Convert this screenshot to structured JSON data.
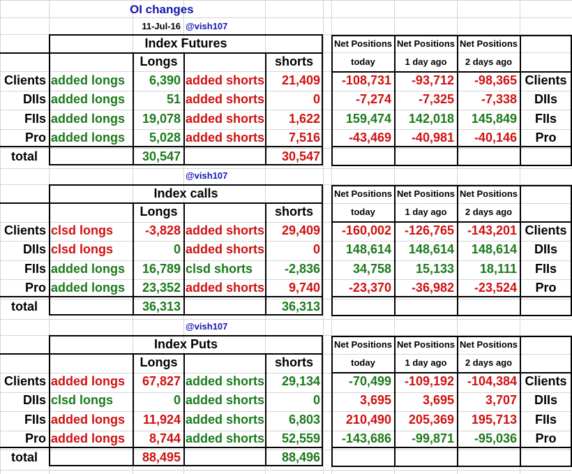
{
  "title": "OI changes",
  "date": "11-Jul-16",
  "handle": "@vish107",
  "columns": {
    "longs": "Longs",
    "shorts": "shorts",
    "net_positions": "Net Positions",
    "today": "today",
    "day1": "1 day ago",
    "day2": "2 days ago"
  },
  "total_label": "total",
  "sections": [
    {
      "heading": "Index Futures",
      "rows": [
        {
          "name": "Clients",
          "long_label": "added longs",
          "long_val": "6,390",
          "short_label": "added shorts",
          "short_val": "21,409",
          "net_today": "-108,731",
          "net_1d": "-93,712",
          "net_2d": "-98,365"
        },
        {
          "name": "DIIs",
          "long_label": "added longs",
          "long_val": "51",
          "short_label": "added shorts",
          "short_val": "0",
          "net_today": "-7,274",
          "net_1d": "-7,325",
          "net_2d": "-7,338"
        },
        {
          "name": "FIIs",
          "long_label": "added longs",
          "long_val": "19,078",
          "short_label": "added shorts",
          "short_val": "1,622",
          "net_today": "159,474",
          "net_1d": "142,018",
          "net_2d": "145,849"
        },
        {
          "name": "Pro",
          "long_label": "added longs",
          "long_val": "5,028",
          "short_label": "added shorts",
          "short_val": "7,516",
          "net_today": "-43,469",
          "net_1d": "-40,981",
          "net_2d": "-40,146"
        }
      ],
      "total_longs": "30,547",
      "total_shorts": "30,547"
    },
    {
      "heading": "Index calls",
      "rows": [
        {
          "name": "Clients",
          "long_label": "clsd longs",
          "long_val": "-3,828",
          "short_label": "added shorts",
          "short_val": "29,409",
          "net_today": "-160,002",
          "net_1d": "-126,765",
          "net_2d": "-143,201"
        },
        {
          "name": "DIIs",
          "long_label": "clsd longs",
          "long_val": "0",
          "short_label": "added shorts",
          "short_val": "0",
          "net_today": "148,614",
          "net_1d": "148,614",
          "net_2d": "148,614"
        },
        {
          "name": "FIIs",
          "long_label": "added longs",
          "long_val": "16,789",
          "short_label": "clsd shorts",
          "short_val": "-2,836",
          "net_today": "34,758",
          "net_1d": "15,133",
          "net_2d": "18,111"
        },
        {
          "name": "Pro",
          "long_label": "added longs",
          "long_val": "23,352",
          "short_label": "added shorts",
          "short_val": "9,740",
          "net_today": "-23,370",
          "net_1d": "-36,982",
          "net_2d": "-23,524"
        }
      ],
      "total_longs": "36,313",
      "total_shorts": "36,313"
    },
    {
      "heading": "Index Puts",
      "rows": [
        {
          "name": "Clients",
          "long_label": "added longs",
          "long_val": "67,827",
          "short_label": "added shorts",
          "short_val": "29,134",
          "net_today": "-70,499",
          "net_1d": "-109,192",
          "net_2d": "-104,384"
        },
        {
          "name": "DIIs",
          "long_label": "clsd longs",
          "long_val": "0",
          "short_label": "added shorts",
          "short_val": "0",
          "net_today": "3,695",
          "net_1d": "3,695",
          "net_2d": "3,707"
        },
        {
          "name": "FIIs",
          "long_label": "added longs",
          "long_val": "11,924",
          "short_label": "added shorts",
          "short_val": "6,803",
          "net_today": "210,490",
          "net_1d": "205,369",
          "net_2d": "195,713"
        },
        {
          "name": "Pro",
          "long_label": "added longs",
          "long_val": "8,744",
          "short_label": "added shorts",
          "short_val": "52,559",
          "net_today": "-143,686",
          "net_1d": "-99,871",
          "net_2d": "-95,036"
        }
      ],
      "total_longs": "88,495",
      "total_shorts": "88,496"
    }
  ],
  "colors": {
    "red": "#d01010",
    "green": "#1a7a1a",
    "blue": "#1414b4",
    "black": "#000000"
  },
  "cell_colors": [
    {
      "long_label": [
        "green",
        "green",
        "green",
        "green"
      ],
      "long_val": [
        "green",
        "green",
        "green",
        "green"
      ],
      "short_label": [
        "red",
        "red",
        "red",
        "red"
      ],
      "short_val": [
        "red",
        "red",
        "red",
        "red"
      ],
      "net_today": [
        "red",
        "red",
        "green",
        "red"
      ],
      "net_1d": [
        "red",
        "red",
        "green",
        "red"
      ],
      "net_2d": [
        "red",
        "red",
        "green",
        "red"
      ],
      "total_longs": "green",
      "total_shorts": "red"
    },
    {
      "long_label": [
        "red",
        "red",
        "green",
        "green"
      ],
      "long_val": [
        "red",
        "green",
        "green",
        "green"
      ],
      "short_label": [
        "red",
        "red",
        "green",
        "red"
      ],
      "short_val": [
        "red",
        "red",
        "green",
        "red"
      ],
      "net_today": [
        "red",
        "green",
        "green",
        "red"
      ],
      "net_1d": [
        "red",
        "green",
        "green",
        "red"
      ],
      "net_2d": [
        "red",
        "green",
        "green",
        "red"
      ],
      "total_longs": "green",
      "total_shorts": "green"
    },
    {
      "long_label": [
        "red",
        "green",
        "red",
        "red"
      ],
      "long_val": [
        "red",
        "green",
        "red",
        "red"
      ],
      "short_label": [
        "green",
        "green",
        "green",
        "green"
      ],
      "short_val": [
        "green",
        "green",
        "green",
        "green"
      ],
      "net_today": [
        "green",
        "red",
        "red",
        "green"
      ],
      "net_1d": [
        "red",
        "red",
        "red",
        "green"
      ],
      "net_2d": [
        "red",
        "red",
        "red",
        "green"
      ],
      "total_longs": "red",
      "total_shorts": "green"
    }
  ]
}
